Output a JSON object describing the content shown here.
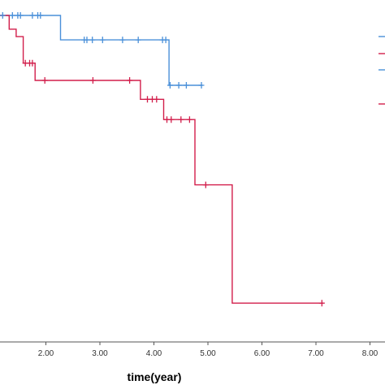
{
  "chart_data": {
    "type": "line",
    "subtype": "kaplan-meier-step",
    "xlabel": "time(year)",
    "ylabel": "",
    "xlim": [
      1.15,
      8.1
    ],
    "ylim": [
      0,
      1.0
    ],
    "x_ticks": [
      2,
      3,
      4,
      5,
      6,
      7,
      8
    ],
    "x_tick_labels": [
      "2.00",
      "3.00",
      "4.00",
      "5.00",
      "6.00",
      "7.00",
      "8.00"
    ],
    "grid": false,
    "legend": "right (partially cropped, labels not visible)",
    "series": [
      {
        "color": "#4a90d9",
        "steps": [
          [
            1.15,
            1.0
          ],
          [
            2.27,
            1.0
          ],
          [
            2.27,
            0.925
          ],
          [
            4.28,
            0.925
          ],
          [
            4.28,
            0.786
          ],
          [
            4.9,
            0.786
          ]
        ],
        "censored": [
          [
            1.2,
            1.0
          ],
          [
            1.38,
            1.0
          ],
          [
            1.48,
            1.0
          ],
          [
            1.53,
            1.0
          ],
          [
            1.75,
            1.0
          ],
          [
            1.85,
            1.0
          ],
          [
            1.9,
            1.0
          ],
          [
            2.71,
            0.925
          ],
          [
            2.76,
            0.925
          ],
          [
            2.86,
            0.925
          ],
          [
            3.05,
            0.925
          ],
          [
            3.42,
            0.925
          ],
          [
            3.71,
            0.925
          ],
          [
            4.16,
            0.925
          ],
          [
            4.22,
            0.925
          ],
          [
            4.3,
            0.786
          ],
          [
            4.46,
            0.786
          ],
          [
            4.6,
            0.786
          ],
          [
            4.88,
            0.786
          ]
        ]
      },
      {
        "color": "#d21e4b",
        "steps": [
          [
            1.15,
            1.0
          ],
          [
            1.32,
            1.0
          ],
          [
            1.32,
            0.958
          ],
          [
            1.45,
            0.958
          ],
          [
            1.45,
            0.935
          ],
          [
            1.58,
            0.935
          ],
          [
            1.58,
            0.854
          ],
          [
            1.8,
            0.854
          ],
          [
            1.8,
            0.801
          ],
          [
            3.75,
            0.801
          ],
          [
            3.75,
            0.743
          ],
          [
            4.18,
            0.743
          ],
          [
            4.18,
            0.681
          ],
          [
            4.76,
            0.681
          ],
          [
            4.76,
            0.481
          ],
          [
            5.45,
            0.481
          ],
          [
            5.45,
            0.119
          ],
          [
            7.13,
            0.119
          ]
        ],
        "censored": [
          [
            1.62,
            0.854
          ],
          [
            1.7,
            0.854
          ],
          [
            1.75,
            0.854
          ],
          [
            1.98,
            0.801
          ],
          [
            2.87,
            0.801
          ],
          [
            3.55,
            0.801
          ],
          [
            3.88,
            0.743
          ],
          [
            3.97,
            0.743
          ],
          [
            4.05,
            0.743
          ],
          [
            4.24,
            0.681
          ],
          [
            4.32,
            0.681
          ],
          [
            4.5,
            0.681
          ],
          [
            4.66,
            0.681
          ],
          [
            4.96,
            0.481
          ],
          [
            7.11,
            0.119
          ]
        ]
      }
    ],
    "legend_swatches": [
      "#4a90d9",
      "#d21e4b",
      "#4a90d9",
      "#d21e4b"
    ]
  }
}
